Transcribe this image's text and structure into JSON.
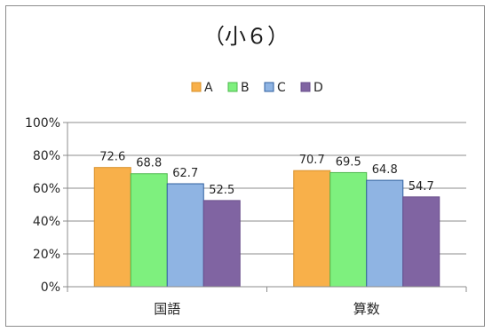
{
  "chart_data": {
    "type": "bar",
    "title": "（小６）",
    "categories": [
      "国語",
      "算数"
    ],
    "series": [
      {
        "name": "A",
        "values": [
          72.6,
          70.7
        ],
        "color": "#F8B04A",
        "stroke": "#D8902A"
      },
      {
        "name": "B",
        "values": [
          68.8,
          69.5
        ],
        "color": "#7EF07E",
        "stroke": "#4CB84C"
      },
      {
        "name": "C",
        "values": [
          62.7,
          64.8
        ],
        "color": "#8FB4E3",
        "stroke": "#2F5F9F"
      },
      {
        "name": "D",
        "values": [
          52.5,
          54.7
        ],
        "color": "#8064A2",
        "stroke": "#6A4F8C"
      }
    ],
    "yticks": [
      "0%",
      "20%",
      "40%",
      "60%",
      "80%",
      "100%"
    ],
    "ylim": [
      0,
      100
    ],
    "grid": true,
    "legend": "top"
  }
}
